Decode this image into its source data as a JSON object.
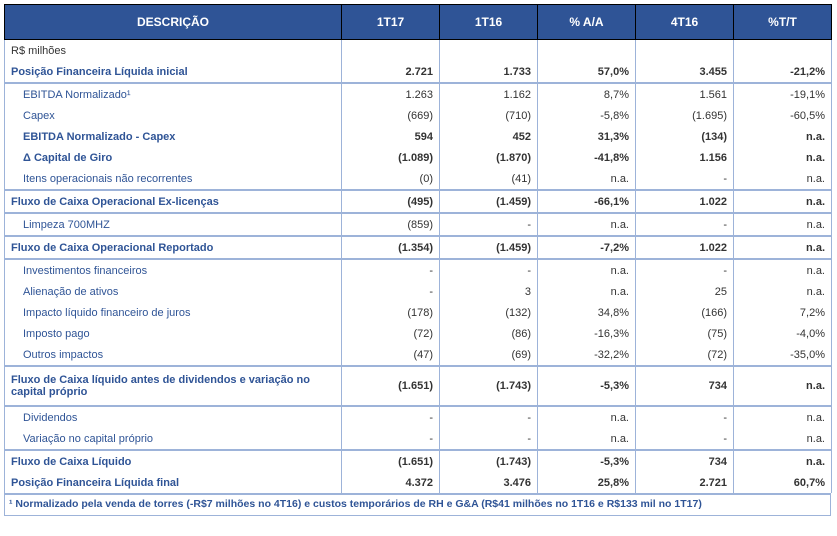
{
  "headers": [
    "DESCRIÇÃO",
    "1T17",
    "1T16",
    "% A/A",
    "4T16",
    "%T/T"
  ],
  "currency_label": "R$ milhões",
  "footnote": "¹ Normalizado pela venda de torres (-R$7 milhões no 4T16) e custos temporários de RH e G&A (R$41 milhões no 1T16 e R$133 mil no 1T17)",
  "rows": [
    {
      "label": "Posição Financeira Líquida inicial",
      "v": [
        "2.721",
        "1.733",
        "57,0%",
        "3.455",
        "-21,2%"
      ],
      "bold": true,
      "indent": 0,
      "topsep": false,
      "botsep": true
    },
    {
      "label": "EBITDA Normalizado¹",
      "v": [
        "1.263",
        "1.162",
        "8,7%",
        "1.561",
        "-19,1%"
      ],
      "bold": false,
      "indent": 1,
      "topsep": true,
      "botsep": false
    },
    {
      "label": "Capex",
      "v": [
        "(669)",
        "(710)",
        "-5,8%",
        "(1.695)",
        "-60,5%"
      ],
      "bold": false,
      "indent": 1,
      "topsep": false,
      "botsep": false
    },
    {
      "label": "EBITDA Normalizado - Capex",
      "v": [
        "594",
        "452",
        "31,3%",
        "(134)",
        "n.a."
      ],
      "bold": true,
      "indent": 1,
      "topsep": false,
      "botsep": false
    },
    {
      "label": "Δ Capital de Giro",
      "v": [
        "(1.089)",
        "(1.870)",
        "-41,8%",
        "1.156",
        "n.a."
      ],
      "bold": true,
      "indent": 1,
      "topsep": false,
      "botsep": false
    },
    {
      "label": "Itens operacionais não recorrentes",
      "v": [
        "(0)",
        "(41)",
        "n.a.",
        "-",
        "n.a."
      ],
      "bold": false,
      "indent": 1,
      "topsep": false,
      "botsep": true
    },
    {
      "label": "Fluxo de Caixa Operacional Ex-licenças",
      "v": [
        "(495)",
        "(1.459)",
        "-66,1%",
        "1.022",
        "n.a."
      ],
      "bold": true,
      "indent": 0,
      "topsep": true,
      "botsep": true
    },
    {
      "label": "Limpeza 700MHZ",
      "v": [
        "(859)",
        "-",
        "n.a.",
        "-",
        "n.a."
      ],
      "bold": false,
      "indent": 1,
      "topsep": true,
      "botsep": true
    },
    {
      "label": "Fluxo de Caixa Operacional Reportado",
      "v": [
        "(1.354)",
        "(1.459)",
        "-7,2%",
        "1.022",
        "n.a."
      ],
      "bold": true,
      "indent": 0,
      "topsep": true,
      "botsep": true
    },
    {
      "label": "Investimentos financeiros",
      "v": [
        "-",
        "-",
        "n.a.",
        "-",
        "n.a."
      ],
      "bold": false,
      "indent": 1,
      "topsep": true,
      "botsep": false
    },
    {
      "label": "Alienação de ativos",
      "v": [
        "-",
        "3",
        "n.a.",
        "25",
        "n.a."
      ],
      "bold": false,
      "indent": 1,
      "topsep": false,
      "botsep": false
    },
    {
      "label": "Impacto líquido financeiro de juros",
      "v": [
        "(178)",
        "(132)",
        "34,8%",
        "(166)",
        "7,2%"
      ],
      "bold": false,
      "indent": 1,
      "topsep": false,
      "botsep": false
    },
    {
      "label": "Imposto pago",
      "v": [
        "(72)",
        "(86)",
        "-16,3%",
        "(75)",
        "-4,0%"
      ],
      "bold": false,
      "indent": 1,
      "topsep": false,
      "botsep": false
    },
    {
      "label": "Outros impactos",
      "v": [
        "(47)",
        "(69)",
        "-32,2%",
        "(72)",
        "-35,0%"
      ],
      "bold": false,
      "indent": 1,
      "topsep": false,
      "botsep": true
    },
    {
      "label": "Fluxo de Caixa líquido antes de dividendos e variação no capital próprio",
      "v": [
        "(1.651)",
        "(1.743)",
        "-5,3%",
        "734",
        "n.a."
      ],
      "bold": true,
      "indent": 0,
      "topsep": true,
      "botsep": true,
      "tall": true
    },
    {
      "label": "Dividendos",
      "v": [
        "-",
        "-",
        "n.a.",
        "-",
        "n.a."
      ],
      "bold": false,
      "indent": 1,
      "topsep": true,
      "botsep": false
    },
    {
      "label": "Variação no capital próprio",
      "v": [
        "-",
        "-",
        "n.a.",
        "-",
        "n.a."
      ],
      "bold": false,
      "indent": 1,
      "topsep": false,
      "botsep": true
    },
    {
      "label": "Fluxo de Caixa Líquido",
      "v": [
        "(1.651)",
        "(1.743)",
        "-5,3%",
        "734",
        "n.a."
      ],
      "bold": true,
      "indent": 0,
      "topsep": true,
      "botsep": false
    },
    {
      "label": "Posição Financeira Líquida final",
      "v": [
        "4.372",
        "3.476",
        "25,8%",
        "2.721",
        "60,7%"
      ],
      "bold": true,
      "indent": 0,
      "topsep": false,
      "botsep": false
    }
  ],
  "colors": {
    "header_bg": "#2f5496",
    "header_fg": "#ffffff",
    "label_fg": "#2f5496",
    "border": "#9db3d9"
  }
}
